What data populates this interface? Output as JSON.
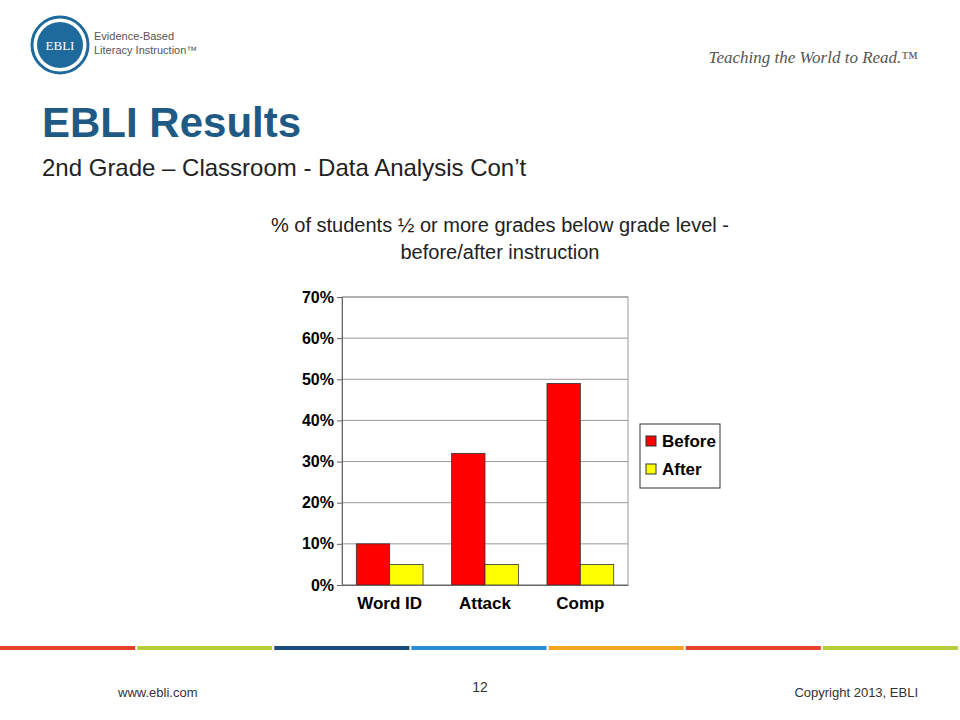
{
  "header": {
    "logo": "EBLI",
    "logo_text": [
      "Evidence-Based",
      "Literacy Instruction™"
    ],
    "tagline": "Teaching the World to Read.™"
  },
  "slide": {
    "title": "EBLI Results",
    "subtitle": "2nd Grade – Classroom - Data Analysis Con’t"
  },
  "chart_data": {
    "type": "bar",
    "title": [
      "% of students ½ or more grades below grade level -",
      "before/after instruction"
    ],
    "categories": [
      "Word ID",
      "Attack",
      "Comp"
    ],
    "series": [
      {
        "name": "Before",
        "color": "#ff0000",
        "values": [
          10,
          32,
          49
        ]
      },
      {
        "name": "After",
        "color": "#ffff00",
        "values": [
          5,
          5,
          5
        ]
      }
    ],
    "ylim": [
      0,
      70
    ],
    "yticks": [
      {
        "value": 0,
        "label": "0%"
      },
      {
        "value": 10,
        "label": "10%"
      },
      {
        "value": 20,
        "label": "20%"
      },
      {
        "value": 30,
        "label": "30%"
      },
      {
        "value": 40,
        "label": "40%"
      },
      {
        "value": 50,
        "label": "50%"
      },
      {
        "value": 60,
        "label": "60%"
      },
      {
        "value": 70,
        "label": "70%"
      }
    ],
    "grid": true,
    "legend": "right"
  },
  "footer": {
    "url": "www.ebli.com",
    "page": "12",
    "copyright": "Copyright 2013, EBLI"
  }
}
